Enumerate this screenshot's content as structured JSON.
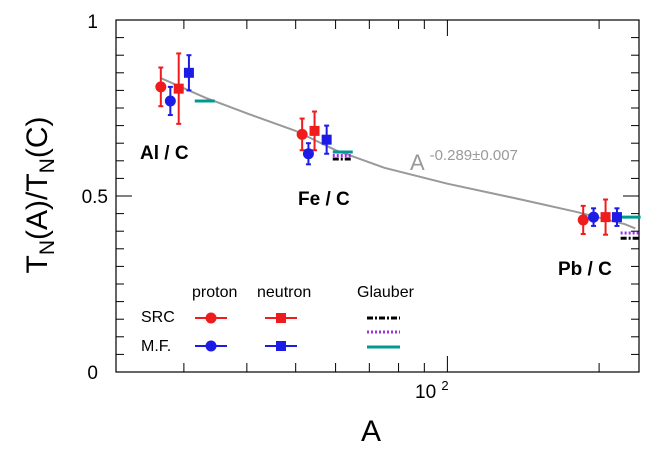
{
  "chart_data": {
    "type": "scatter",
    "xlabel": "A",
    "ylabel": "T_N(A)/T_N(C)",
    "xscale": "log",
    "xlim": [
      22,
      240
    ],
    "ylim": [
      0,
      1
    ],
    "y_ticks": [
      {
        "value": 0,
        "label": "0"
      },
      {
        "value": 0.5,
        "label": "0.5"
      },
      {
        "value": 1,
        "label": "1"
      }
    ],
    "x_ticks": [
      {
        "value": 100,
        "label": "10",
        "exponent": "2"
      }
    ],
    "groups": [
      {
        "name": "Al",
        "label": "Al / C"
      },
      {
        "name": "Fe",
        "label": "Fe / C"
      },
      {
        "name": "Pb",
        "label": "Pb / C"
      }
    ],
    "fit": {
      "label_base": "A",
      "label_exponent": "-0.289±0.007",
      "color": "#999999",
      "points": [
        [
          27,
          0.835
        ],
        [
          33,
          0.78
        ],
        [
          40,
          0.735
        ],
        [
          50,
          0.685
        ],
        [
          60,
          0.63
        ],
        [
          75,
          0.58
        ],
        [
          100,
          0.535
        ],
        [
          140,
          0.49
        ],
        [
          180,
          0.455
        ],
        [
          225,
          0.42
        ],
        [
          236,
          0.408
        ]
      ]
    },
    "series": [
      {
        "name": "SRC proton",
        "marker": "circle",
        "color": "#ee1c1c",
        "points": [
          {
            "x": 27.0,
            "y": 0.81,
            "err": 0.055
          },
          {
            "x": 51.5,
            "y": 0.675,
            "err": 0.045
          },
          {
            "x": 186,
            "y": 0.432,
            "err": 0.04
          }
        ]
      },
      {
        "name": "SRC neutron",
        "marker": "square",
        "color": "#ee1c1c",
        "points": [
          {
            "x": 29.3,
            "y": 0.805,
            "err": 0.1
          },
          {
            "x": 54.5,
            "y": 0.685,
            "err": 0.055
          },
          {
            "x": 206,
            "y": 0.44,
            "err": 0.05
          }
        ]
      },
      {
        "name": "MF proton",
        "marker": "circle",
        "color": "#1c1ce6",
        "points": [
          {
            "x": 28.2,
            "y": 0.77,
            "err": 0.04
          },
          {
            "x": 53.0,
            "y": 0.62,
            "err": 0.03
          },
          {
            "x": 195,
            "y": 0.44,
            "err": 0.025
          }
        ]
      },
      {
        "name": "MF neutron",
        "marker": "square",
        "color": "#1c1ce6",
        "points": [
          {
            "x": 30.7,
            "y": 0.85,
            "err": 0.05
          },
          {
            "x": 57.6,
            "y": 0.66,
            "err": 0.04
          },
          {
            "x": 217,
            "y": 0.44,
            "err": 0.025
          }
        ]
      }
    ],
    "glauber": [
      {
        "name": "Glauber SRC",
        "style": "dashdot",
        "color": "#000000",
        "points": [
          {
            "x": 62,
            "y": 0.605
          },
          {
            "x": 231,
            "y": 0.38
          }
        ]
      },
      {
        "name": "Glauber dotted",
        "style": "dotted",
        "color": "#9b30e0",
        "points": [
          {
            "x": 62,
            "y": 0.615
          },
          {
            "x": 231,
            "y": 0.395
          }
        ]
      },
      {
        "name": "Glauber MF",
        "style": "solid",
        "color": "#00998f",
        "points": [
          {
            "x": 33,
            "y": 0.77
          },
          {
            "x": 62,
            "y": 0.625
          },
          {
            "x": 231,
            "y": 0.44
          }
        ]
      }
    ],
    "legend": {
      "position": "bottom-left",
      "col_headers": [
        "proton",
        "neutron",
        "Glauber"
      ],
      "row_labels": [
        "SRC",
        "M.F."
      ]
    }
  }
}
